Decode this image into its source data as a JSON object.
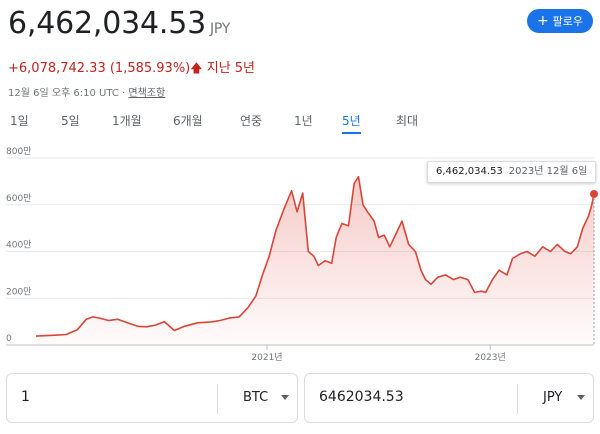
{
  "header": {
    "price": "6,462,034.53",
    "currency": "JPY",
    "change": "+6,078,742.33 (1,585.93%)",
    "change_period": "지난 5년",
    "timestamp": "12월 6일 오후 6:10 UTC · ",
    "disclaimer": "면책조항",
    "follow_label": "팔로우"
  },
  "tabs": [
    {
      "label": "1일"
    },
    {
      "label": "5일"
    },
    {
      "label": "1개월"
    },
    {
      "label": "6개월"
    },
    {
      "label": "연중"
    },
    {
      "label": "1년"
    },
    {
      "label": "5년",
      "active": true
    },
    {
      "label": "최대"
    }
  ],
  "tooltip": {
    "value": "6,462,034.53",
    "date": "2023년 12월 6일"
  },
  "colors": {
    "line": "#db4437",
    "accent": "#1a73e8",
    "down": "#c5221f"
  },
  "chart_data": {
    "type": "area",
    "y_tick_labels": [
      "800만",
      "600만",
      "400만",
      "200만",
      "0"
    ],
    "y_ticks": [
      8000000,
      6000000,
      4000000,
      2000000,
      0
    ],
    "ylim": [
      0,
      8000000
    ],
    "x_tick_labels": [
      "2021년",
      "2023년"
    ],
    "x_ticks": [
      2021.0,
      2023.0
    ],
    "xlim": [
      2018.93,
      2023.93
    ],
    "series": [
      {
        "points": [
          [
            2018.93,
            380000
          ],
          [
            2019.01,
            400000
          ],
          [
            2019.1,
            420000
          ],
          [
            2019.2,
            450000
          ],
          [
            2019.3,
            650000
          ],
          [
            2019.38,
            1100000
          ],
          [
            2019.44,
            1200000
          ],
          [
            2019.5,
            1150000
          ],
          [
            2019.58,
            1050000
          ],
          [
            2019.66,
            1100000
          ],
          [
            2019.75,
            950000
          ],
          [
            2019.84,
            800000
          ],
          [
            2019.92,
            780000
          ],
          [
            2020.0,
            850000
          ],
          [
            2020.08,
            1000000
          ],
          [
            2020.17,
            620000
          ],
          [
            2020.26,
            800000
          ],
          [
            2020.38,
            950000
          ],
          [
            2020.5,
            990000
          ],
          [
            2020.58,
            1050000
          ],
          [
            2020.66,
            1150000
          ],
          [
            2020.75,
            1200000
          ],
          [
            2020.83,
            1600000
          ],
          [
            2020.9,
            2100000
          ],
          [
            2020.96,
            3000000
          ],
          [
            2021.02,
            3800000
          ],
          [
            2021.08,
            4900000
          ],
          [
            2021.15,
            5800000
          ],
          [
            2021.22,
            6600000
          ],
          [
            2021.27,
            5700000
          ],
          [
            2021.32,
            6500000
          ],
          [
            2021.37,
            4000000
          ],
          [
            2021.42,
            3800000
          ],
          [
            2021.46,
            3400000
          ],
          [
            2021.52,
            3600000
          ],
          [
            2021.58,
            3500000
          ],
          [
            2021.62,
            4600000
          ],
          [
            2021.67,
            5200000
          ],
          [
            2021.73,
            5100000
          ],
          [
            2021.78,
            6900000
          ],
          [
            2021.82,
            7200000
          ],
          [
            2021.86,
            6000000
          ],
          [
            2021.9,
            5700000
          ],
          [
            2021.96,
            5300000
          ],
          [
            2022.0,
            4600000
          ],
          [
            2022.05,
            4700000
          ],
          [
            2022.1,
            4200000
          ],
          [
            2022.15,
            4700000
          ],
          [
            2022.21,
            5300000
          ],
          [
            2022.27,
            4300000
          ],
          [
            2022.33,
            4000000
          ],
          [
            2022.38,
            3200000
          ],
          [
            2022.42,
            2800000
          ],
          [
            2022.47,
            2600000
          ],
          [
            2022.53,
            2900000
          ],
          [
            2022.6,
            3000000
          ],
          [
            2022.67,
            2800000
          ],
          [
            2022.73,
            2900000
          ],
          [
            2022.8,
            2800000
          ],
          [
            2022.86,
            2250000
          ],
          [
            2022.92,
            2300000
          ],
          [
            2022.96,
            2250000
          ],
          [
            2023.02,
            2800000
          ],
          [
            2023.08,
            3200000
          ],
          [
            2023.15,
            3000000
          ],
          [
            2023.2,
            3700000
          ],
          [
            2023.27,
            3900000
          ],
          [
            2023.33,
            4000000
          ],
          [
            2023.4,
            3800000
          ],
          [
            2023.47,
            4200000
          ],
          [
            2023.54,
            4000000
          ],
          [
            2023.6,
            4300000
          ],
          [
            2023.67,
            4000000
          ],
          [
            2023.72,
            3900000
          ],
          [
            2023.78,
            4200000
          ],
          [
            2023.83,
            5000000
          ],
          [
            2023.88,
            5500000
          ],
          [
            2023.91,
            6000000
          ],
          [
            2023.93,
            6462034.53
          ]
        ]
      }
    ]
  },
  "converter": {
    "left_value": "1",
    "left_unit": "BTC",
    "right_value": "6462034.53",
    "right_unit": "JPY"
  }
}
